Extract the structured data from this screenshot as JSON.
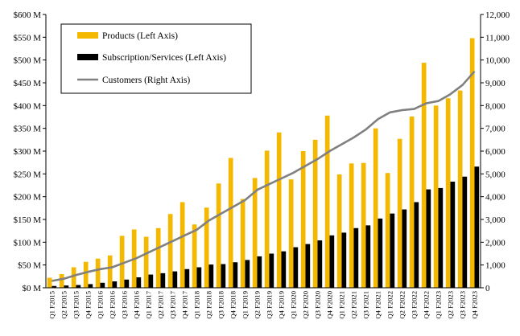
{
  "chart_data": {
    "type": "bar",
    "title": "",
    "xlabel": "",
    "ylabel_left": "",
    "ylabel_right": "",
    "ylim_left": [
      0,
      600
    ],
    "ylim_right": [
      0,
      12000
    ],
    "grid": false,
    "legend_position": "top-left",
    "left_ticks": [
      "$0 M",
      "$50 M",
      "$100 M",
      "$150 M",
      "$200 M",
      "$250 M",
      "$300 M",
      "$350 M",
      "$400 M",
      "$450 M",
      "$500 M",
      "$550 M",
      "$600 M"
    ],
    "right_ticks": [
      "0",
      "1,000",
      "2,000",
      "3,000",
      "4,000",
      "5,000",
      "6,000",
      "7,000",
      "8,000",
      "9,000",
      "10,000",
      "11,000",
      "12,000"
    ],
    "categories": [
      "Q1 F2015",
      "Q2 F2015",
      "Q3 F2015",
      "Q4 F2015",
      "Q1 F2016",
      "Q2 F2016",
      "Q3 F2016",
      "Q4 F2016",
      "Q1 F2017",
      "Q2 F2017",
      "Q3 F2017",
      "Q4 F2017",
      "Q1 F2018",
      "Q2 F2018",
      "Q3 F2018",
      "Q4 F2018",
      "Q1 F2019",
      "Q2 F2019",
      "Q3 F2019",
      "Q4 F2019",
      "Q1 F2020",
      "Q2 F2020",
      "Q3 F2020",
      "Q4 F2020",
      "Q1 F2021",
      "Q2 F2021",
      "Q3 F2021",
      "Q4 F2021",
      "Q1 F2022",
      "Q2 F2022",
      "Q3 F2022",
      "Q4 F2022",
      "Q1 F2023",
      "Q2 F2023",
      "Q3 F2023",
      "Q4 F2023"
    ],
    "series": [
      {
        "name": "Products (Left Axis)",
        "type": "bar",
        "axis": "left",
        "color": "#F5B800",
        "values": [
          22,
          30,
          45,
          57,
          64,
          71,
          114,
          128,
          112,
          131,
          162,
          188,
          139,
          176,
          229,
          285,
          195,
          241,
          301,
          341,
          238,
          300,
          325,
          378,
          249,
          273,
          274,
          350,
          252,
          327,
          376,
          494,
          400,
          416,
          433,
          548
        ]
      },
      {
        "name": "Subscription/Services (Left Axis)",
        "type": "bar",
        "axis": "left",
        "color": "#000000",
        "values": [
          4,
          5,
          6,
          8,
          11,
          14,
          18,
          23,
          29,
          32,
          36,
          41,
          45,
          51,
          52,
          56,
          61,
          69,
          75,
          80,
          89,
          96,
          104,
          115,
          121,
          131,
          137,
          152,
          163,
          172,
          188,
          216,
          219,
          233,
          244,
          266
        ]
      },
      {
        "name": "Customers (Right Axis)",
        "type": "line",
        "axis": "right",
        "color": "#808080",
        "values": [
          300,
          400,
          560,
          700,
          820,
          900,
          1100,
          1300,
          1550,
          1800,
          2050,
          2300,
          2550,
          2950,
          3250,
          3550,
          3850,
          4300,
          4550,
          4800,
          5050,
          5350,
          5650,
          6000,
          6300,
          6600,
          6950,
          7400,
          7700,
          7800,
          7850,
          8100,
          8200,
          8500,
          8900,
          9500
        ]
      }
    ]
  }
}
